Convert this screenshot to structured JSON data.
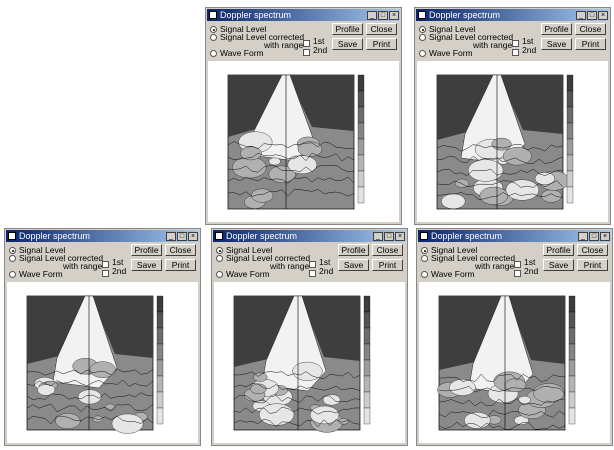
{
  "windows": [
    {
      "title": "Doppler spectrum",
      "options": [
        "Signal Level",
        "Signal Level corrected",
        "Wave Form"
      ],
      "option_note": "with range",
      "selected_option": 0,
      "checkboxes": [
        "1st",
        "2nd"
      ],
      "buttons": [
        "Profile",
        "Close",
        "Save",
        "Print"
      ]
    },
    {
      "title": "Doppler spectrum",
      "options": [
        "Signal Level",
        "Signal Level corrected",
        "Wave Form"
      ],
      "option_note": "with range",
      "selected_option": 0,
      "checkboxes": [
        "1st",
        "2nd"
      ],
      "buttons": [
        "Profile",
        "Close",
        "Save",
        "Print"
      ]
    },
    {
      "title": "Doppler spectrum",
      "options": [
        "Signal Level",
        "Signal Level corrected",
        "Wave Form"
      ],
      "option_note": "with range",
      "selected_option": 0,
      "checkboxes": [
        "1st",
        "2nd"
      ],
      "buttons": [
        "Profile",
        "Close",
        "Save",
        "Print"
      ]
    },
    {
      "title": "Doppler spectrum",
      "options": [
        "Signal Level",
        "Signal Level corrected",
        "Wave Form"
      ],
      "option_note": "with range",
      "selected_option": 0,
      "checkboxes": [
        "1st",
        "2nd"
      ],
      "buttons": [
        "Profile",
        "Close",
        "Save",
        "Print"
      ]
    },
    {
      "title": "Doppler spectrum",
      "options": [
        "Signal Level",
        "Signal Level corrected",
        "Wave Form"
      ],
      "option_note": "with range",
      "selected_option": 0,
      "checkboxes": [
        "1st",
        "2nd"
      ],
      "buttons": [
        "Profile",
        "Close",
        "Save",
        "Print"
      ]
    }
  ]
}
